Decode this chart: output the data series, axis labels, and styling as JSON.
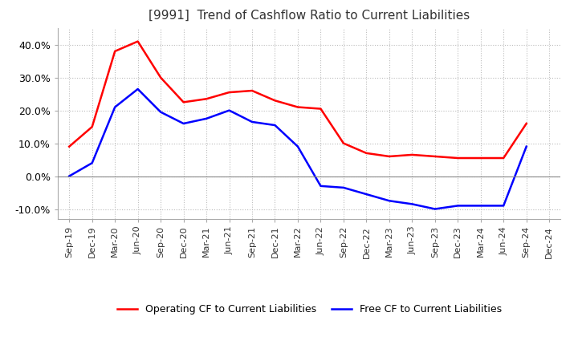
{
  "title": "[9991]  Trend of Cashflow Ratio to Current Liabilities",
  "x_labels": [
    "Sep-19",
    "Dec-19",
    "Mar-20",
    "Jun-20",
    "Sep-20",
    "Dec-20",
    "Mar-21",
    "Jun-21",
    "Sep-21",
    "Dec-21",
    "Mar-22",
    "Jun-22",
    "Sep-22",
    "Dec-22",
    "Mar-23",
    "Jun-23",
    "Sep-23",
    "Dec-23",
    "Mar-24",
    "Jun-24",
    "Sep-24",
    "Dec-24"
  ],
  "operating_cf": [
    0.09,
    0.15,
    0.38,
    0.41,
    0.3,
    0.225,
    0.235,
    0.255,
    0.26,
    0.23,
    0.21,
    0.205,
    0.1,
    0.07,
    0.06,
    0.065,
    0.06,
    0.055,
    0.055,
    0.055,
    0.16,
    null
  ],
  "free_cf": [
    0.0,
    0.04,
    0.21,
    0.265,
    0.195,
    0.16,
    0.175,
    0.2,
    0.165,
    0.155,
    0.09,
    -0.03,
    -0.035,
    -0.055,
    -0.075,
    -0.085,
    -0.1,
    -0.09,
    -0.09,
    -0.09,
    0.09,
    null
  ],
  "ylim": [
    -0.13,
    0.45
  ],
  "yticks": [
    -0.1,
    0.0,
    0.1,
    0.2,
    0.3,
    0.4
  ],
  "operating_color": "#ff0000",
  "free_color": "#0000ff",
  "background_color": "#ffffff",
  "grid_color": "#bbbbbb",
  "title_fontsize": 11,
  "legend_labels": [
    "Operating CF to Current Liabilities",
    "Free CF to Current Liabilities"
  ]
}
